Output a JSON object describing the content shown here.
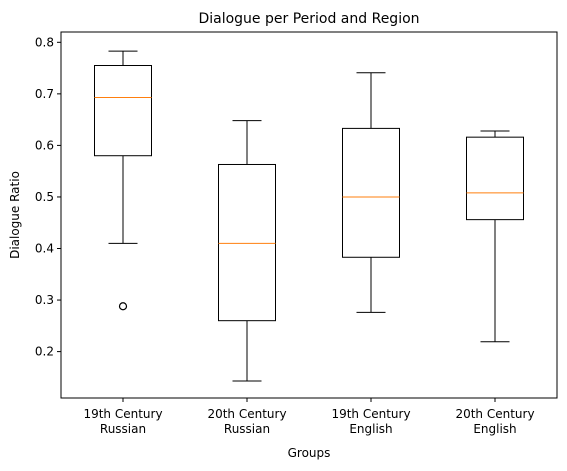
{
  "chart_data": {
    "type": "box",
    "title": "Dialogue per Period and Region",
    "xlabel": "Groups",
    "ylabel": "Dialogue Ratio",
    "ylim": [
      0.11,
      0.82
    ],
    "yticks": [
      0.2,
      0.3,
      0.4,
      0.5,
      0.6,
      0.7,
      0.8
    ],
    "ytick_labels": [
      "0.2",
      "0.3",
      "0.4",
      "0.5",
      "0.6",
      "0.7",
      "0.8"
    ],
    "grid": false,
    "categories": [
      [
        "19th Century",
        "Russian"
      ],
      [
        "20th Century",
        "Russian"
      ],
      [
        "19th Century",
        "English"
      ],
      [
        "20th Century",
        "English"
      ]
    ],
    "boxes": [
      {
        "whisker_low": 0.41,
        "q1": 0.58,
        "median": 0.693,
        "q3": 0.755,
        "whisker_high": 0.783,
        "outliers": [
          0.288
        ]
      },
      {
        "whisker_low": 0.143,
        "q1": 0.26,
        "median": 0.41,
        "q3": 0.563,
        "whisker_high": 0.648,
        "outliers": []
      },
      {
        "whisker_low": 0.276,
        "q1": 0.383,
        "median": 0.5,
        "q3": 0.633,
        "whisker_high": 0.741,
        "outliers": []
      },
      {
        "whisker_low": 0.219,
        "q1": 0.456,
        "median": 0.508,
        "q3": 0.616,
        "whisker_high": 0.628,
        "outliers": []
      }
    ],
    "colors": {
      "box": "#000000",
      "median": "#ff7f0e",
      "axes": "#000000"
    }
  }
}
